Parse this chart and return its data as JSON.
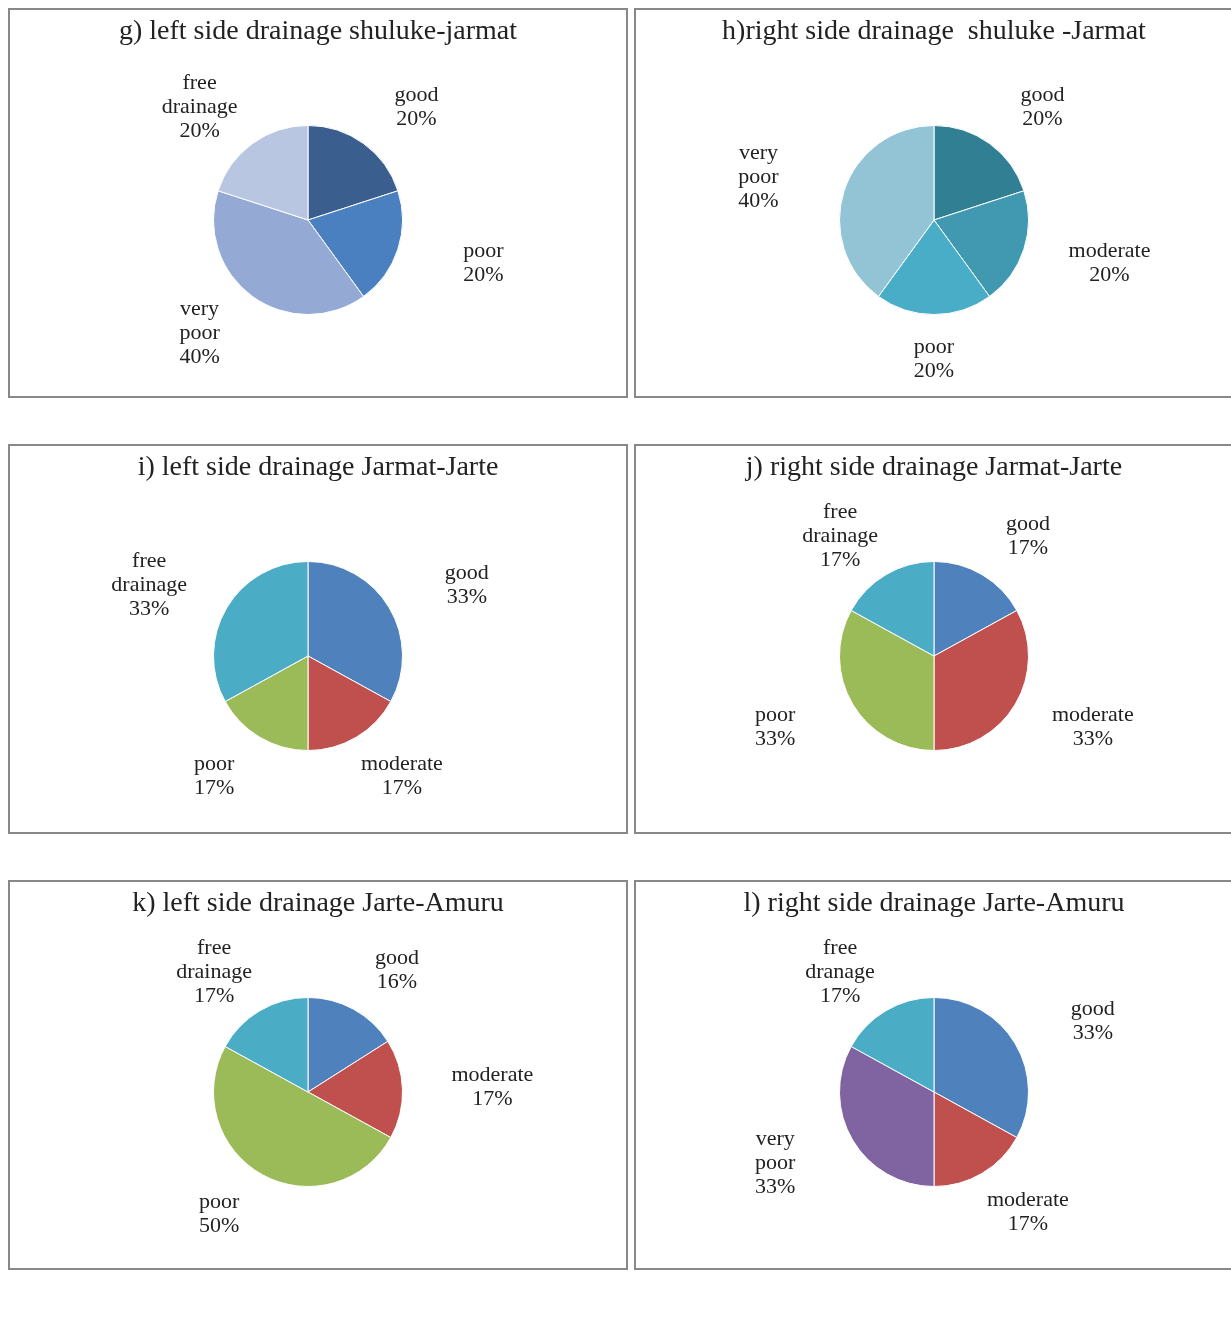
{
  "chart_data": [
    {
      "type": "pie",
      "title": "g) left side drainage shuluke-jarmat",
      "categories": [
        "good",
        "poor",
        "very poor",
        "free drainage"
      ],
      "values": [
        20,
        20,
        40,
        20
      ],
      "value_labels": [
        "20%",
        "20%",
        "40%",
        "20%"
      ],
      "colors": [
        "#3a5f8f",
        "#4a7fc0",
        "#94a9d4",
        "#b9c6e2"
      ]
    },
    {
      "type": "pie",
      "title": "h)right side drainage  shuluke -Jarmat",
      "categories": [
        "good",
        "moderate",
        "poor",
        "very poor"
      ],
      "values": [
        20,
        20,
        20,
        40
      ],
      "value_labels": [
        "20%",
        "20%",
        "20%",
        "40%"
      ],
      "colors": [
        "#317f92",
        "#4099b0",
        "#4aadc8",
        "#93c4d6"
      ]
    },
    {
      "type": "pie",
      "title": "i) left side drainage Jarmat-Jarte",
      "categories": [
        "good",
        "moderate",
        "poor",
        "free drainage"
      ],
      "values": [
        33,
        17,
        17,
        33
      ],
      "value_labels": [
        "33%",
        "17%",
        "17%",
        "33%"
      ],
      "colors": [
        "#4f81bd",
        "#c0504d",
        "#9bbb59",
        "#4bacc6"
      ]
    },
    {
      "type": "pie",
      "title": "j) right side drainage Jarmat-Jarte",
      "categories": [
        "good",
        "moderate",
        "poor",
        "free drainage"
      ],
      "values": [
        17,
        33,
        33,
        17
      ],
      "value_labels": [
        "17%",
        "33%",
        "33%",
        "17%"
      ],
      "colors": [
        "#4f81bd",
        "#c0504d",
        "#9bbb59",
        "#4bacc6"
      ]
    },
    {
      "type": "pie",
      "title": "k) left side drainage Jarte-Amuru",
      "categories": [
        "good",
        "moderate",
        "poor",
        "free drainage"
      ],
      "values": [
        16,
        17,
        50,
        17
      ],
      "value_labels": [
        "16%",
        "17%",
        "50%",
        "17%"
      ],
      "colors": [
        "#4f81bd",
        "#c0504d",
        "#9bbb59",
        "#4bacc6"
      ]
    },
    {
      "type": "pie",
      "title": "l) right side drainage Jarte-Amuru",
      "categories": [
        "good",
        "moderate",
        "very poor",
        "free dranage"
      ],
      "values": [
        33,
        17,
        33,
        17
      ],
      "value_labels": [
        "33%",
        "17%",
        "33%",
        "17%"
      ],
      "colors": [
        "#4f81bd",
        "#c0504d",
        "#8064a2",
        "#4bacc6"
      ]
    }
  ]
}
